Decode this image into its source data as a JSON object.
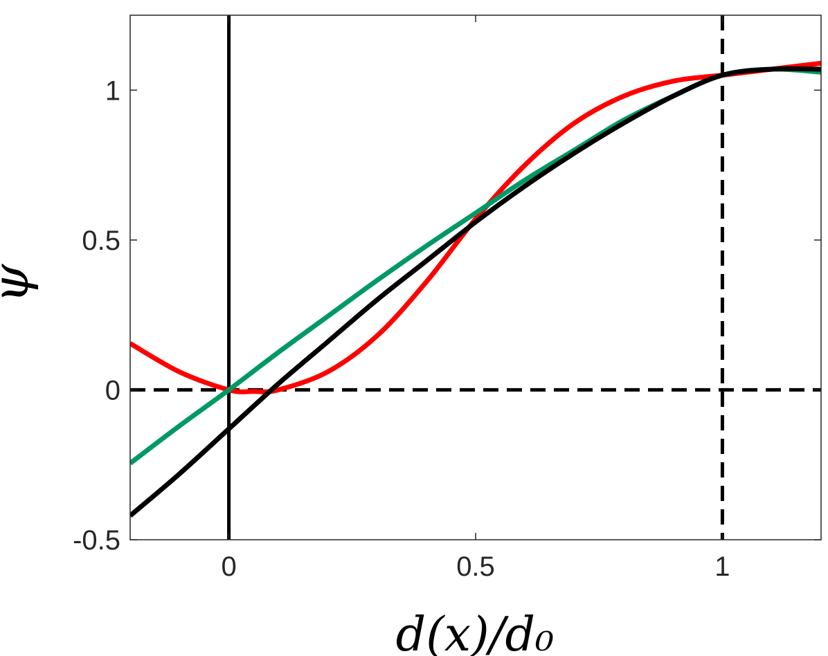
{
  "chart_data": {
    "type": "line",
    "title": "",
    "xlabel": "d(x)/d₀",
    "ylabel": "ψ",
    "xlim": [
      -0.2,
      1.2
    ],
    "ylim": [
      -0.5,
      1.25
    ],
    "grid": false,
    "legend": "none",
    "x_ticks": [
      {
        "value": 0,
        "label": "0"
      },
      {
        "value": 0.5,
        "label": "0.5"
      },
      {
        "value": 1,
        "label": "1"
      }
    ],
    "y_ticks": [
      {
        "value": -0.5,
        "label": "-0.5"
      },
      {
        "value": 0,
        "label": "0"
      },
      {
        "value": 0.5,
        "label": "0.5"
      },
      {
        "value": 1,
        "label": "1"
      }
    ],
    "reference_lines": [
      {
        "orientation": "vertical",
        "value": 0,
        "style": "solid",
        "color": "#000000"
      },
      {
        "orientation": "vertical",
        "value": 1,
        "style": "dashed",
        "color": "#000000"
      },
      {
        "orientation": "horizontal",
        "value": 0,
        "style": "dashed",
        "color": "#000000"
      }
    ],
    "series": [
      {
        "color": "#ff0000",
        "x": [
          -0.2,
          -0.1,
          0.0,
          0.05,
          0.1,
          0.2,
          0.3,
          0.4,
          0.5,
          0.6,
          0.7,
          0.8,
          0.9,
          1.0,
          1.1,
          1.2
        ],
        "y": [
          0.155,
          0.06,
          0.0,
          -0.005,
          0.0,
          0.06,
          0.18,
          0.36,
          0.57,
          0.75,
          0.89,
          0.98,
          1.03,
          1.05,
          1.07,
          1.09
        ]
      },
      {
        "color": "#009966",
        "x": [
          -0.2,
          -0.1,
          0.0,
          0.1,
          0.2,
          0.3,
          0.4,
          0.5,
          0.6,
          0.7,
          0.8,
          0.9,
          1.0,
          1.1,
          1.2
        ],
        "y": [
          -0.245,
          -0.12,
          0.0,
          0.125,
          0.245,
          0.365,
          0.48,
          0.59,
          0.7,
          0.8,
          0.9,
          0.98,
          1.05,
          1.07,
          1.06
        ]
      },
      {
        "color": "#000000",
        "x": [
          -0.2,
          -0.1,
          0.0,
          0.1,
          0.2,
          0.3,
          0.4,
          0.5,
          0.6,
          0.7,
          0.8,
          0.9,
          1.0,
          1.1,
          1.2
        ],
        "y": [
          -0.42,
          -0.28,
          -0.13,
          0.02,
          0.16,
          0.3,
          0.43,
          0.56,
          0.68,
          0.79,
          0.89,
          0.98,
          1.05,
          1.07,
          1.07
        ]
      }
    ]
  }
}
